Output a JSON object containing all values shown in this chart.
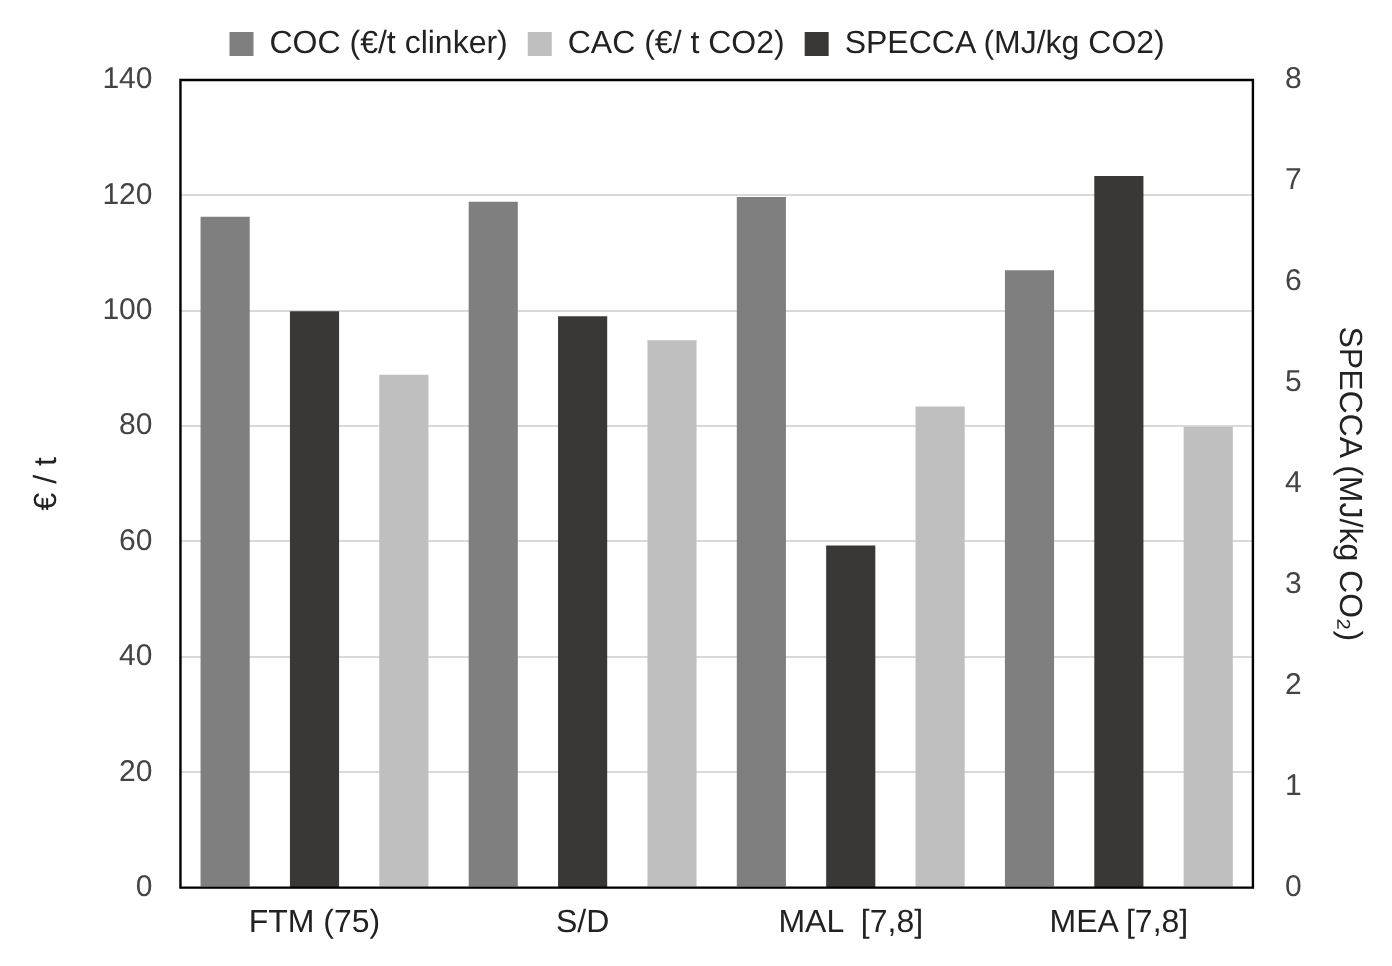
{
  "chart_data": {
    "type": "bar",
    "categories": [
      "FTM (75)",
      "S/D",
      "MAL  [7,8]",
      "MEA [7,8]"
    ],
    "series": [
      {
        "name": "COC (€/t clinker)",
        "color": "#7f7f7f",
        "values": [
          116.3,
          118.9,
          119.7,
          107.0
        ]
      },
      {
        "name": "SPECCA (MJ/kg CO2)",
        "color": "#3a3836",
        "axis": "y2",
        "values": [
          5.71,
          5.66,
          3.39,
          7.05
        ]
      },
      {
        "name": "CAC (€/ t CO2)",
        "color": "#bfbfbf",
        "values": [
          88.9,
          94.9,
          83.4,
          79.9
        ]
      }
    ],
    "ylabel": "€ / t",
    "y2label": "SPECCA (MJ/kg CO₂)",
    "ylim": [
      0,
      140
    ],
    "yticks": [
      0,
      20,
      40,
      60,
      80,
      100,
      120,
      140
    ],
    "y2lim": [
      0,
      8
    ],
    "y2ticks": [
      0,
      1,
      2,
      3,
      4,
      5,
      6,
      7,
      8
    ],
    "grid": "y",
    "legend": "top"
  }
}
